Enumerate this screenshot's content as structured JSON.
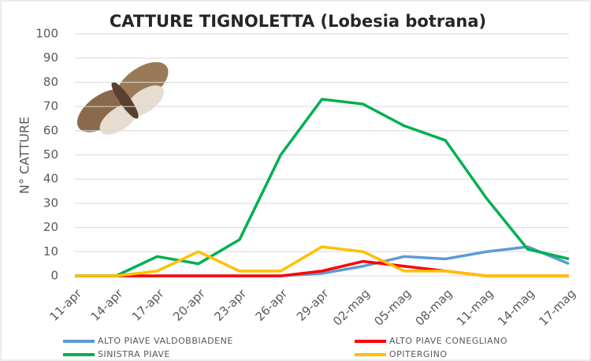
{
  "chart_data": {
    "type": "line",
    "title": "CATTURE TIGNOLETTA (Lobesia botrana)",
    "y_label": "N° CATTURE",
    "categories": [
      "11-apr",
      "14-apr",
      "17-apr",
      "20-apr",
      "23-apr",
      "26-apr",
      "29-apr",
      "02-mag",
      "05-mag",
      "08-mag",
      "11-mag",
      "14-mag",
      "17-mag"
    ],
    "series": [
      {
        "name": "ALTO PIAVE VALDOBBIADENE",
        "color": "#5b9bd5",
        "values": [
          0,
          0,
          0,
          0,
          0,
          0,
          1,
          4,
          8,
          7,
          10,
          12,
          5
        ]
      },
      {
        "name": "ALTO PIAVE CONEGLIANO",
        "color": "#ff0000",
        "values": [
          0,
          0,
          0,
          0,
          0,
          0,
          2,
          6,
          4,
          2,
          0,
          0,
          0
        ]
      },
      {
        "name": "SINISTRA PIAVE",
        "color": "#00b050",
        "values": [
          0,
          0,
          8,
          5,
          15,
          50,
          73,
          71,
          62,
          56,
          32,
          11,
          7
        ]
      },
      {
        "name": "OPITERGINO",
        "color": "#ffc000",
        "values": [
          0,
          0,
          2,
          10,
          2,
          2,
          12,
          10,
          2,
          2,
          0,
          0,
          0
        ]
      }
    ],
    "ylim": [
      0,
      100
    ],
    "yticks": [
      0,
      10,
      20,
      30,
      40,
      50,
      60,
      70,
      80,
      90,
      100
    ],
    "grid": true,
    "legend": "bottom"
  }
}
